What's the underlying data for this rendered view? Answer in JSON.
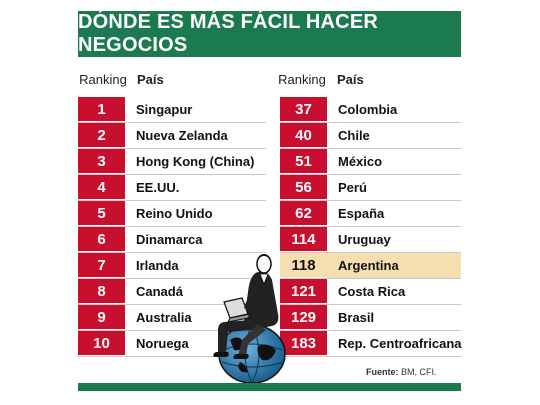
{
  "title": "DÓNDE ES MÁS FÁCIL HACER NEGOCIOS",
  "headers": {
    "ranking": "Ranking",
    "pais": "País"
  },
  "left_rows": [
    {
      "rank": "1",
      "country": "Singapur"
    },
    {
      "rank": "2",
      "country": "Nueva Zelanda"
    },
    {
      "rank": "3",
      "country": "Hong Kong (China)"
    },
    {
      "rank": "4",
      "country": "EE.UU."
    },
    {
      "rank": "5",
      "country": "Reino Unido"
    },
    {
      "rank": "6",
      "country": "Dinamarca"
    },
    {
      "rank": "7",
      "country": "Irlanda"
    },
    {
      "rank": "8",
      "country": "Canadá"
    },
    {
      "rank": "9",
      "country": "Australia"
    },
    {
      "rank": "10",
      "country": "Noruega"
    }
  ],
  "right_rows": [
    {
      "rank": "37",
      "country": "Colombia"
    },
    {
      "rank": "40",
      "country": "Chile"
    },
    {
      "rank": "51",
      "country": "México"
    },
    {
      "rank": "56",
      "country": "Perú"
    },
    {
      "rank": "62",
      "country": "España"
    },
    {
      "rank": "114",
      "country": "Uruguay"
    },
    {
      "rank": "118",
      "country": "Argentina"
    },
    {
      "rank": "121",
      "country": "Costa Rica"
    },
    {
      "rank": "129",
      "country": "Brasil"
    },
    {
      "rank": "183",
      "country": "Rep. Centroafricana"
    }
  ],
  "source": {
    "label": "Fuente:",
    "text": "BM, CFI."
  },
  "colors": {
    "green": "#1b7a4f",
    "red": "#c8102e",
    "highlight": "#f5dfb0"
  },
  "highlighted_country": "Argentina",
  "illustration": "man-with-laptop-sitting-on-globe"
}
